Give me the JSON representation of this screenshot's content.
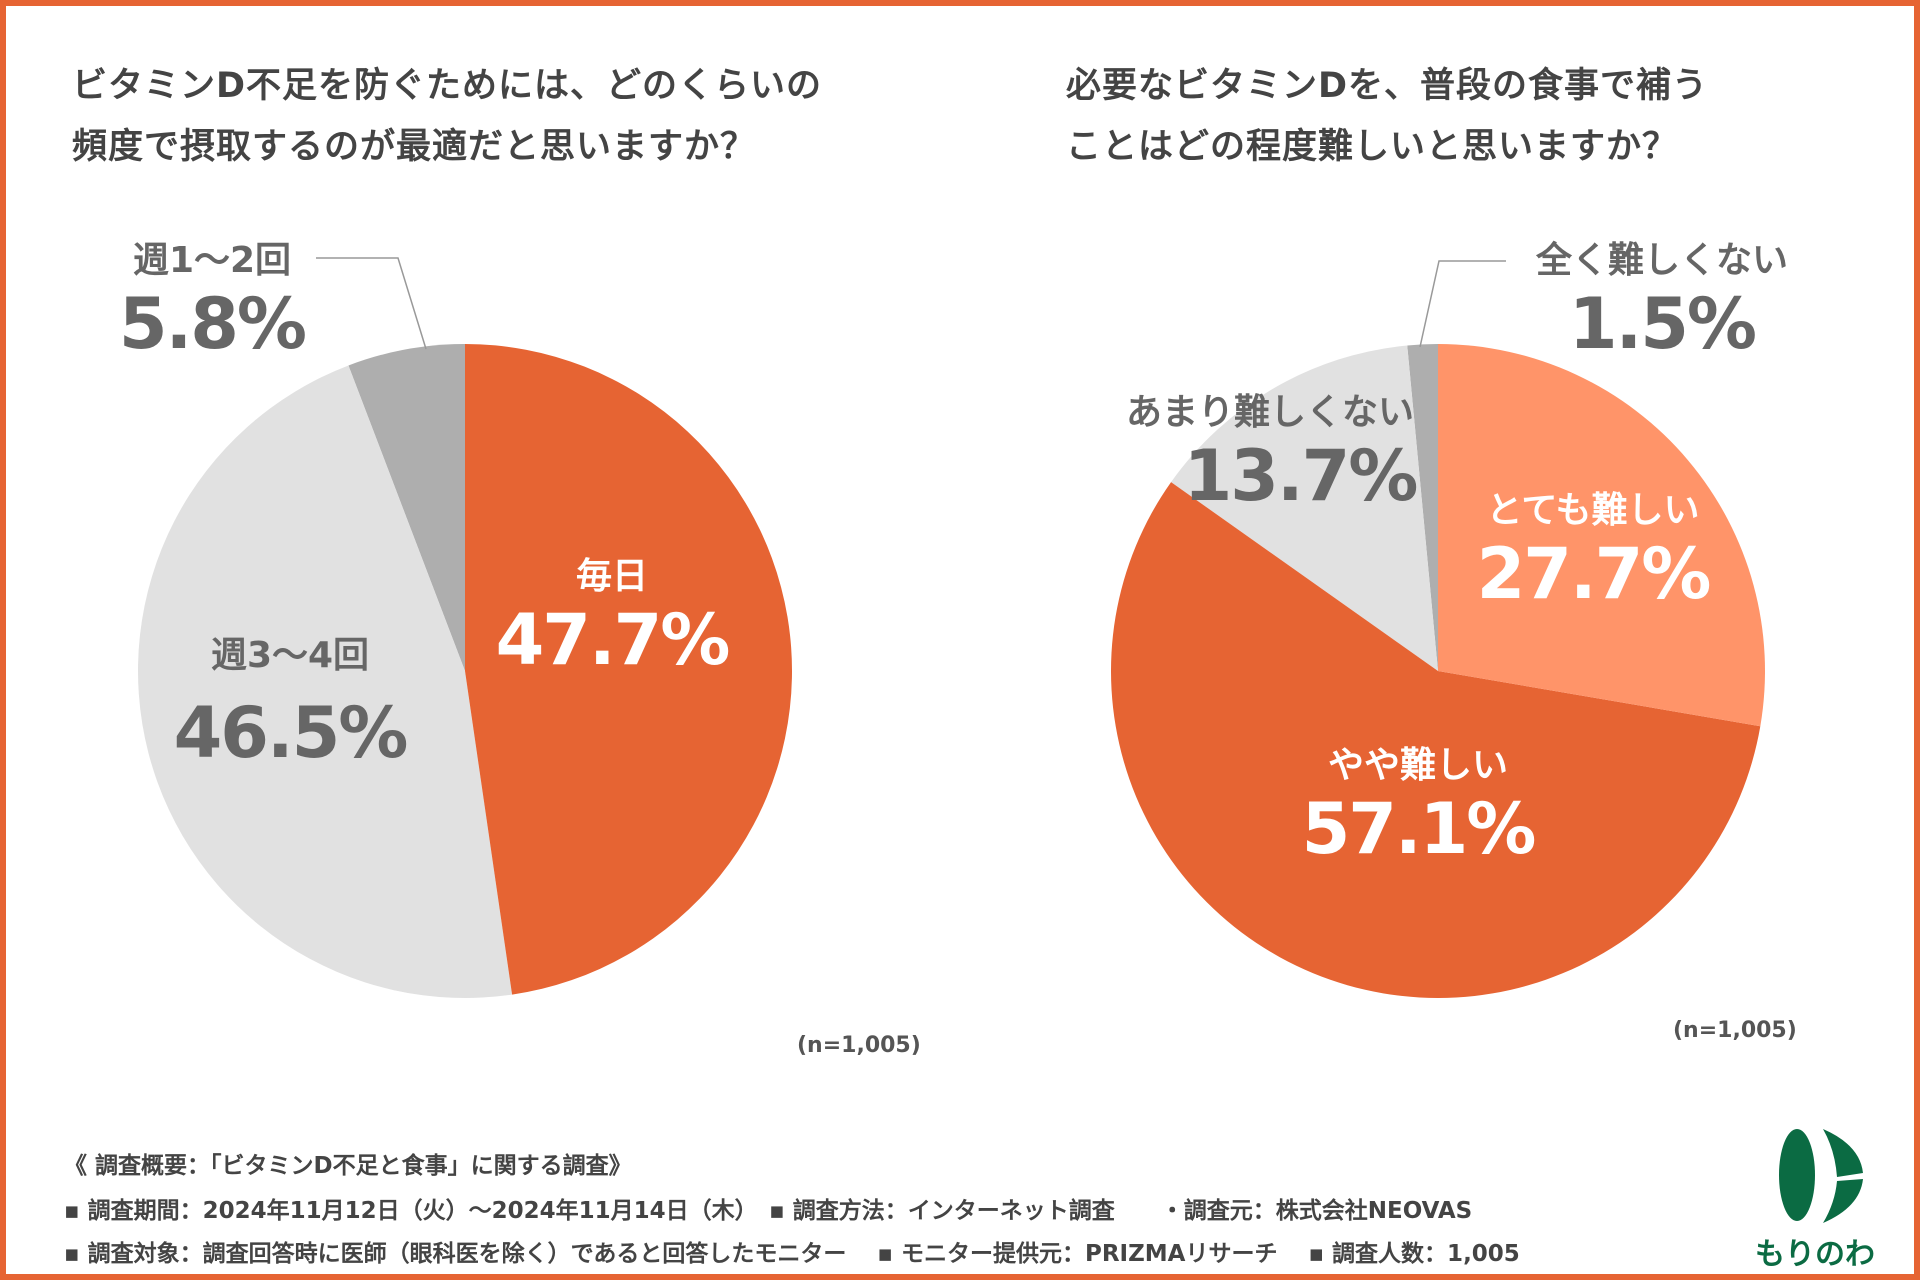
{
  "chart_data": [
    {
      "type": "pie",
      "title": "ビタミンD不足を防ぐためには、どのくらいの\n頻度で摂取するのが最適だと思いますか？",
      "note": "(n=1,005)",
      "slices": [
        {
          "label": "毎日",
          "value": 47.7,
          "display": "47.7%",
          "color": "#E66433",
          "text_color": "#ffffff"
        },
        {
          "label": "週3〜4回",
          "value": 46.5,
          "display": "46.5%",
          "color": "#E1E1E1",
          "text_color": "#666666"
        },
        {
          "label": "週1〜2回",
          "value": 5.8,
          "display": "5.8%",
          "color": "#AEAEAE",
          "text_color": "#666666"
        }
      ]
    },
    {
      "type": "pie",
      "title": "必要なビタミンDを、普段の食事で補う\nことはどの程度難しいと思いますか？",
      "note": "(n=1,005)",
      "slices": [
        {
          "label": "とても難しい",
          "value": 27.7,
          "display": "27.7%",
          "color": "#FF9469",
          "text_color": "#ffffff"
        },
        {
          "label": "やや難しい",
          "value": 57.1,
          "display": "57.1%",
          "color": "#E66433",
          "text_color": "#ffffff"
        },
        {
          "label": "あまり難しくない",
          "value": 13.7,
          "display": "13.7%",
          "color": "#E1E1E1",
          "text_color": "#666666"
        },
        {
          "label": "全く難しくない",
          "value": 1.5,
          "display": "1.5%",
          "color": "#AEAEAE",
          "text_color": "#666666"
        }
      ]
    }
  ],
  "footer": {
    "line1": "《 調査概要：「ビタミンD不足と食事」に関する調査》",
    "line2": "▪ 調査期間：2024年11月12日（火）〜2024年11月14日（木）　▪ 調査方法：インターネット調査　　・調査元：株式会社NEOVAS",
    "line3": "▪ 調査対象：調査回答時に医師（眼科医を除く）であると回答したモニター　 ▪ モニター提供元：PRIZMAリサーチ　 ▪ 調査人数：1,005"
  },
  "logo": {
    "text": "もりのわ",
    "color": "#0B6B43"
  }
}
